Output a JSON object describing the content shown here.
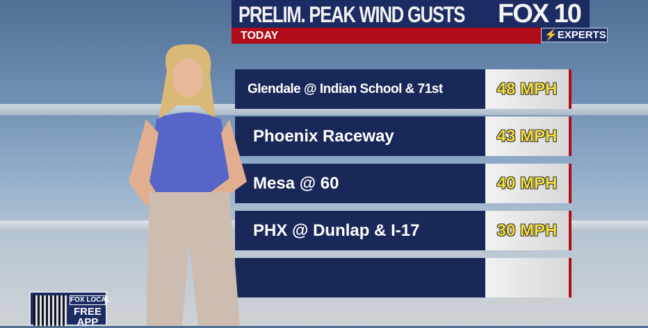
{
  "header": {
    "title": "PRELIM. PEAK WIND GUSTS",
    "subtitle": "TODAY",
    "logo": "FOX 10",
    "badge": "EXPERTS"
  },
  "rows": [
    {
      "location": "Glendale @ Indian School & 71st",
      "gust": "48 MPH"
    },
    {
      "location": "Phoenix Raceway",
      "gust": "43 MPH"
    },
    {
      "location": "Mesa @ 60",
      "gust": "40 MPH"
    },
    {
      "location": "PHX @ Dunlap & I-17",
      "gust": "30 MPH"
    },
    {
      "location": "",
      "gust": ""
    }
  ],
  "promo": {
    "brand": "FOX LOCAL",
    "text": "FREE APP"
  },
  "colors": {
    "navy": "#1a2859",
    "red": "#b00d18",
    "value_yellow": "#f1dd3c"
  }
}
